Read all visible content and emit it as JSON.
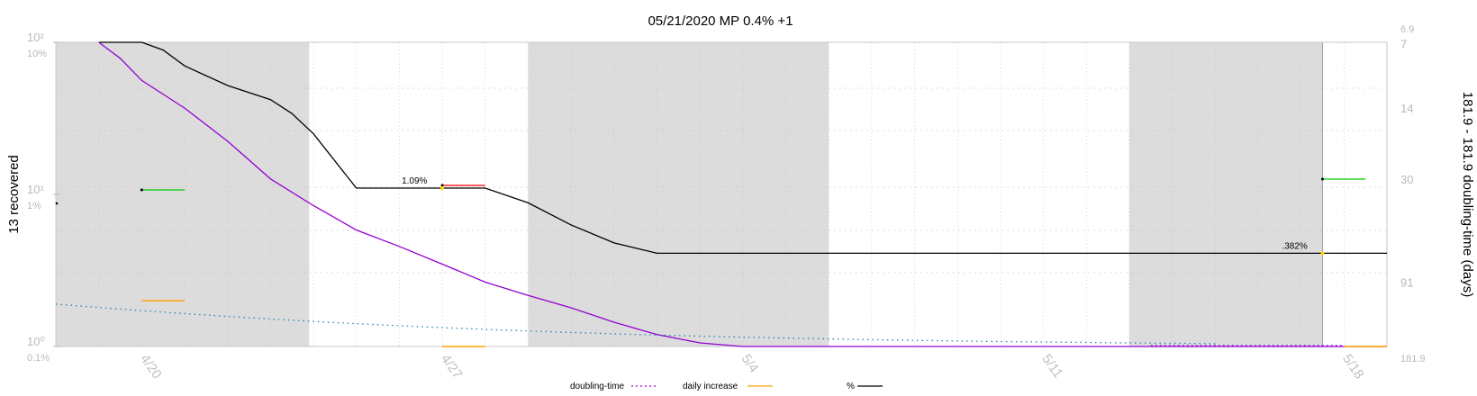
{
  "chart_data": {
    "type": "line",
    "title": "05/21/2020 MP 0.4% +1",
    "ylabel_left": "13 recovered",
    "ylabel_right": "181.9 - 181.9 doubling-time (days)",
    "y_scale": "log",
    "ylim_left": [
      1,
      100
    ],
    "left_ticks": [
      "10²",
      "10¹",
      "10⁰"
    ],
    "left_ticks_pct": [
      "10%",
      "1%",
      "0.1%"
    ],
    "right_ticks": [
      "6.9",
      "7",
      "14",
      "30",
      "91",
      "181.9"
    ],
    "x_tick_labels": [
      "4/20",
      "4/27",
      "5/4",
      "5/11",
      "5/18"
    ],
    "x_range_days": [
      -2,
      29
    ],
    "shaded_bands_days": [
      [
        -2,
        3.9
      ],
      [
        9,
        16
      ],
      [
        23,
        27.5
      ]
    ],
    "grid": true,
    "legend_position": "bottom-center",
    "legend": [
      "doubling-time",
      "daily increase",
      "%"
    ],
    "colors": {
      "percent": "#000000",
      "doubling_time": "#9400d3",
      "daily_increase": "#ffa500",
      "projection": "#2a82a5",
      "marker_green": "#00cc00",
      "marker_red": "#ff0000",
      "band": "#dcdcdc"
    },
    "annotations": [
      "1.09%",
      ".382%"
    ],
    "series": [
      {
        "name": "%",
        "x": [
          -1,
          0,
          0.5,
          1,
          2,
          3,
          3.5,
          4,
          5,
          6,
          7,
          8,
          9,
          10,
          11,
          12,
          13,
          14,
          15,
          16,
          17,
          18,
          19,
          20,
          21,
          22,
          23,
          24,
          25,
          26,
          27,
          28,
          29
        ],
        "y": [
          100,
          100,
          89,
          70,
          52,
          42,
          34,
          25,
          11,
          11,
          11,
          11,
          8.8,
          6.3,
          4.8,
          4.1,
          4.1,
          4.1,
          4.1,
          4.1,
          4.1,
          4.1,
          4.1,
          4.1,
          4.1,
          4.1,
          4.1,
          4.1,
          4.1,
          4.1,
          4.1,
          4.1,
          4.1
        ]
      },
      {
        "name": "doubling-time",
        "x": [
          -1,
          -0.5,
          0,
          1,
          2,
          3,
          4,
          5,
          6,
          7,
          8,
          9,
          10,
          11,
          12,
          13,
          14,
          14.5,
          15,
          16,
          17,
          18,
          19,
          20,
          21,
          22,
          23,
          24,
          25,
          26,
          27,
          28,
          29
        ],
        "y": [
          6.9,
          8.2,
          10.4,
          14,
          20,
          30,
          40,
          52,
          62,
          75,
          91,
          105,
          120,
          140,
          160,
          175,
          181.9,
          181.9,
          181.9,
          181.9,
          181.9,
          181.9,
          181.9,
          181.9,
          181.9,
          181.9,
          181.9,
          181.9,
          181.9,
          181.9,
          181.9,
          181.9,
          181.9
        ]
      },
      {
        "name": "daily increase",
        "x": [
          0,
          1,
          7,
          8,
          28,
          29
        ],
        "y": [
          2,
          2,
          1,
          1,
          1,
          1
        ]
      }
    ]
  }
}
